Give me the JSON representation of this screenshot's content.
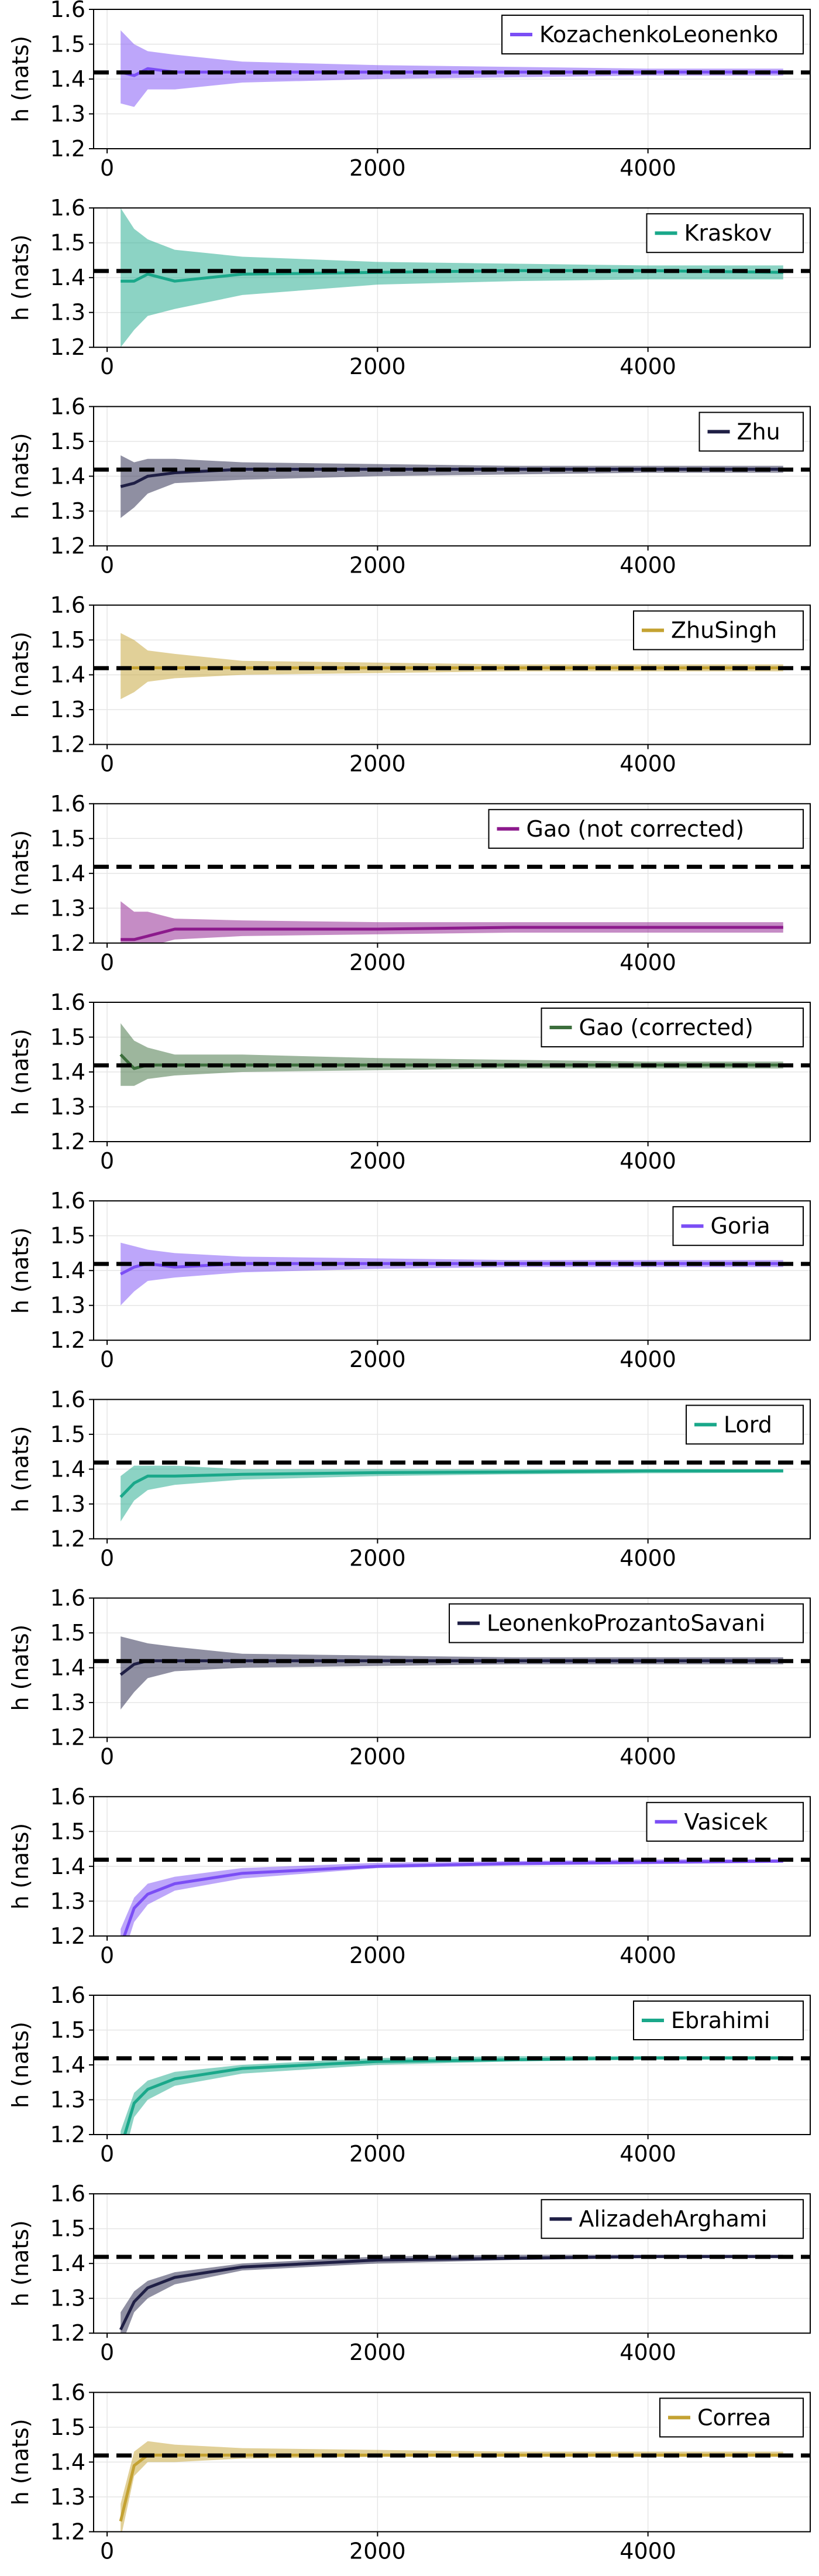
{
  "figure": {
    "ylabel": "h (nats)",
    "reference_line": 1.419,
    "xlim": [
      -100,
      5200
    ],
    "ylim": [
      1.2,
      1.6
    ],
    "xticks": [
      0,
      2000,
      4000
    ],
    "yticks": [
      1.2,
      1.3,
      1.4,
      1.5,
      1.6
    ],
    "xtick_labels": [
      "0",
      "2000",
      "4000"
    ],
    "ytick_labels": [
      "1.2",
      "1.3",
      "1.4",
      "1.5",
      "1.6"
    ],
    "grid": true,
    "legend_position": "top-right"
  },
  "chart_data": [
    {
      "type": "line",
      "name": "KozachenkoLeonenko",
      "color": "#7b4ef5",
      "x": [
        100,
        200,
        300,
        500,
        1000,
        2000,
        3000,
        4000,
        5000
      ],
      "y": [
        1.42,
        1.41,
        1.43,
        1.42,
        1.42,
        1.42,
        1.42,
        1.42,
        1.42
      ],
      "lower": [
        1.33,
        1.32,
        1.37,
        1.37,
        1.39,
        1.4,
        1.405,
        1.41,
        1.41
      ],
      "upper": [
        1.54,
        1.5,
        1.48,
        1.47,
        1.45,
        1.44,
        1.435,
        1.43,
        1.43
      ]
    },
    {
      "type": "line",
      "name": "Kraskov",
      "color": "#1aa88a",
      "x": [
        100,
        200,
        300,
        500,
        1000,
        2000,
        3000,
        4000,
        5000
      ],
      "y": [
        1.39,
        1.39,
        1.41,
        1.39,
        1.41,
        1.415,
        1.42,
        1.42,
        1.415
      ],
      "lower": [
        1.2,
        1.25,
        1.29,
        1.31,
        1.35,
        1.38,
        1.39,
        1.395,
        1.395
      ],
      "upper": [
        1.6,
        1.54,
        1.51,
        1.48,
        1.46,
        1.445,
        1.44,
        1.435,
        1.435
      ]
    },
    {
      "type": "line",
      "name": "Zhu",
      "color": "#1f1f45",
      "x": [
        100,
        200,
        300,
        500,
        1000,
        2000,
        3000,
        4000,
        5000
      ],
      "y": [
        1.37,
        1.38,
        1.4,
        1.41,
        1.42,
        1.42,
        1.42,
        1.42,
        1.42
      ],
      "lower": [
        1.28,
        1.31,
        1.35,
        1.38,
        1.39,
        1.4,
        1.405,
        1.41,
        1.41
      ],
      "upper": [
        1.46,
        1.44,
        1.45,
        1.45,
        1.44,
        1.435,
        1.43,
        1.43,
        1.43
      ]
    },
    {
      "type": "line",
      "name": "ZhuSingh",
      "color": "#c4a232",
      "x": [
        100,
        200,
        300,
        500,
        1000,
        2000,
        3000,
        4000,
        5000
      ],
      "y": [
        1.42,
        1.42,
        1.42,
        1.42,
        1.42,
        1.42,
        1.42,
        1.42,
        1.42
      ],
      "lower": [
        1.33,
        1.35,
        1.38,
        1.39,
        1.4,
        1.405,
        1.41,
        1.41,
        1.41
      ],
      "upper": [
        1.52,
        1.5,
        1.47,
        1.46,
        1.44,
        1.435,
        1.43,
        1.43,
        1.43
      ]
    },
    {
      "type": "line",
      "name": "Gao (not corrected)",
      "color": "#8c1a8c",
      "x": [
        100,
        200,
        300,
        500,
        1000,
        2000,
        3000,
        4000,
        5000
      ],
      "y": [
        1.21,
        1.21,
        1.22,
        1.24,
        1.24,
        1.24,
        1.245,
        1.245,
        1.245
      ],
      "lower": [
        1.16,
        1.17,
        1.19,
        1.21,
        1.22,
        1.225,
        1.23,
        1.23,
        1.23
      ],
      "upper": [
        1.32,
        1.29,
        1.29,
        1.27,
        1.265,
        1.26,
        1.26,
        1.26,
        1.26
      ]
    },
    {
      "type": "line",
      "name": "Gao (corrected)",
      "color": "#3c6e3c",
      "x": [
        100,
        200,
        300,
        500,
        1000,
        2000,
        3000,
        4000,
        5000
      ],
      "y": [
        1.45,
        1.41,
        1.42,
        1.42,
        1.42,
        1.42,
        1.42,
        1.42,
        1.42
      ],
      "lower": [
        1.36,
        1.36,
        1.38,
        1.39,
        1.4,
        1.405,
        1.41,
        1.41,
        1.41
      ],
      "upper": [
        1.54,
        1.49,
        1.47,
        1.45,
        1.45,
        1.44,
        1.435,
        1.43,
        1.43
      ]
    },
    {
      "type": "line",
      "name": "Goria",
      "color": "#7b4ef5",
      "x": [
        100,
        200,
        300,
        500,
        1000,
        2000,
        3000,
        4000,
        5000
      ],
      "y": [
        1.39,
        1.41,
        1.42,
        1.41,
        1.42,
        1.42,
        1.42,
        1.42,
        1.42
      ],
      "lower": [
        1.3,
        1.34,
        1.37,
        1.38,
        1.395,
        1.405,
        1.41,
        1.41,
        1.41
      ],
      "upper": [
        1.48,
        1.47,
        1.46,
        1.45,
        1.44,
        1.435,
        1.43,
        1.43,
        1.43
      ]
    },
    {
      "type": "line",
      "name": "Lord",
      "color": "#1aa88a",
      "x": [
        100,
        200,
        300,
        500,
        1000,
        2000,
        3000,
        4000,
        5000
      ],
      "y": [
        1.32,
        1.36,
        1.38,
        1.38,
        1.385,
        1.39,
        1.392,
        1.395,
        1.395
      ],
      "lower": [
        1.25,
        1.31,
        1.34,
        1.355,
        1.37,
        1.38,
        1.385,
        1.388,
        1.39
      ],
      "upper": [
        1.38,
        1.41,
        1.41,
        1.41,
        1.4,
        1.4,
        1.4,
        1.4,
        1.4
      ]
    },
    {
      "type": "line",
      "name": "LeonenkoProzantoSavani",
      "color": "#1f1f45",
      "x": [
        100,
        200,
        300,
        500,
        1000,
        2000,
        3000,
        4000,
        5000
      ],
      "y": [
        1.38,
        1.41,
        1.42,
        1.42,
        1.42,
        1.42,
        1.42,
        1.42,
        1.42
      ],
      "lower": [
        1.28,
        1.33,
        1.37,
        1.39,
        1.4,
        1.405,
        1.41,
        1.41,
        1.41
      ],
      "upper": [
        1.49,
        1.48,
        1.47,
        1.46,
        1.44,
        1.435,
        1.43,
        1.43,
        1.43
      ]
    },
    {
      "type": "line",
      "name": "Vasicek",
      "color": "#7b4ef5",
      "x": [
        100,
        200,
        300,
        500,
        1000,
        2000,
        3000,
        4000,
        5000
      ],
      "y": [
        1.17,
        1.28,
        1.32,
        1.35,
        1.38,
        1.4,
        1.408,
        1.412,
        1.415
      ],
      "lower": [
        1.12,
        1.24,
        1.29,
        1.33,
        1.365,
        1.395,
        1.402,
        1.406,
        1.41
      ],
      "upper": [
        1.22,
        1.31,
        1.35,
        1.37,
        1.395,
        1.41,
        1.415,
        1.42,
        1.42
      ]
    },
    {
      "type": "line",
      "name": "Ebrahimi",
      "color": "#1aa88a",
      "x": [
        100,
        200,
        300,
        500,
        1000,
        2000,
        3000,
        4000,
        5000
      ],
      "y": [
        1.16,
        1.29,
        1.33,
        1.36,
        1.39,
        1.41,
        1.415,
        1.42,
        1.42
      ],
      "lower": [
        1.1,
        1.25,
        1.3,
        1.34,
        1.375,
        1.4,
        1.41,
        1.415,
        1.415
      ],
      "upper": [
        1.21,
        1.32,
        1.355,
        1.38,
        1.4,
        1.42,
        1.425,
        1.425,
        1.425
      ]
    },
    {
      "type": "line",
      "name": "AlizadehArghami",
      "color": "#1f1f45",
      "x": [
        100,
        200,
        300,
        500,
        1000,
        2000,
        3000,
        4000,
        5000
      ],
      "y": [
        1.21,
        1.29,
        1.33,
        1.36,
        1.39,
        1.41,
        1.415,
        1.42,
        1.42
      ],
      "lower": [
        1.16,
        1.26,
        1.3,
        1.34,
        1.38,
        1.4,
        1.41,
        1.415,
        1.415
      ],
      "upper": [
        1.26,
        1.32,
        1.35,
        1.375,
        1.4,
        1.42,
        1.425,
        1.425,
        1.425
      ]
    },
    {
      "type": "line",
      "name": "Correa",
      "color": "#c4a232",
      "x": [
        100,
        200,
        300,
        500,
        1000,
        2000,
        3000,
        4000,
        5000
      ],
      "y": [
        1.23,
        1.39,
        1.42,
        1.42,
        1.42,
        1.42,
        1.42,
        1.42,
        1.42
      ],
      "lower": [
        1.18,
        1.36,
        1.4,
        1.4,
        1.41,
        1.415,
        1.415,
        1.415,
        1.415
      ],
      "upper": [
        1.28,
        1.43,
        1.46,
        1.45,
        1.44,
        1.435,
        1.43,
        1.43,
        1.43
      ]
    }
  ]
}
